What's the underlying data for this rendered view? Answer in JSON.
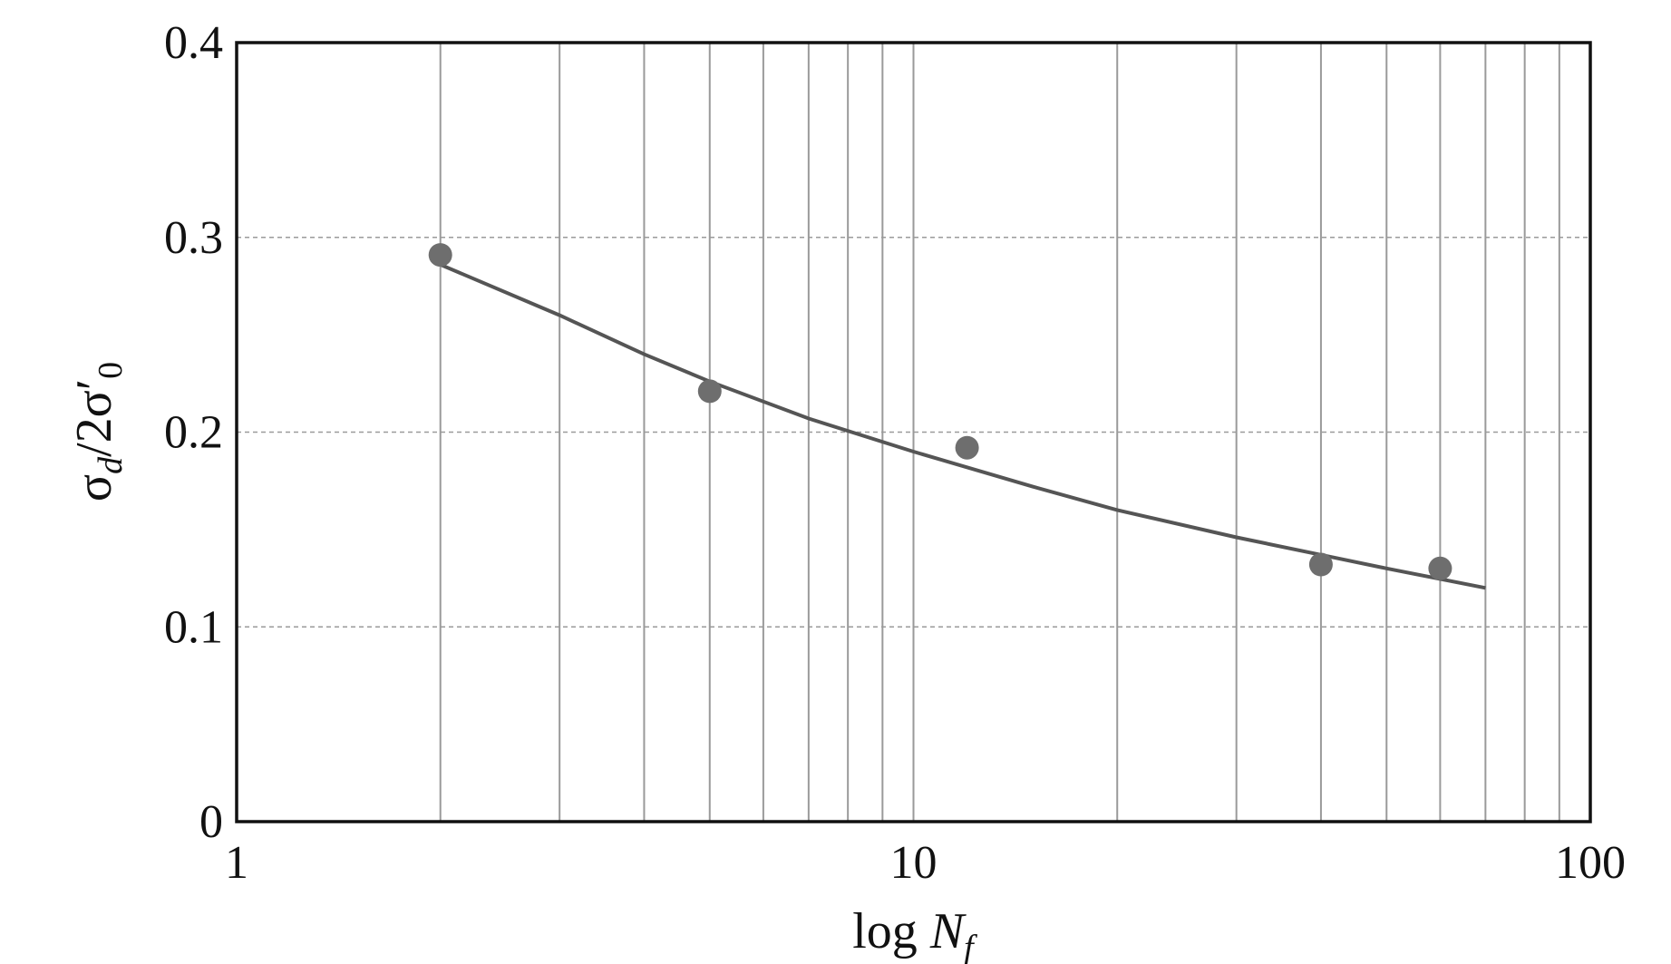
{
  "chart_data": {
    "type": "scatter",
    "title": "",
    "xlabel": "log N_f",
    "xlabel_parts": {
      "prefix": "log ",
      "main": "N",
      "sub": "f"
    },
    "ylabel": "σ_d/2σ'_0",
    "ylabel_parts": {
      "s1": "σ",
      "sub1": "d",
      "mid": "/2σ",
      "prime": "′",
      "sub2": "0"
    },
    "x_scale": "log",
    "xlim": [
      1,
      100
    ],
    "ylim": [
      0,
      0.4
    ],
    "x_ticks": [
      1,
      10,
      100
    ],
    "x_tick_labels": [
      "1",
      "10",
      "100"
    ],
    "y_ticks": [
      0,
      0.1,
      0.2,
      0.3,
      0.4
    ],
    "y_tick_labels": [
      "0",
      "0.1",
      "0.2",
      "0.3",
      "0.4"
    ],
    "grid": {
      "x_minor": true,
      "y_major": true
    },
    "legend": "none",
    "series": [
      {
        "kind": "points",
        "x": [
          2,
          5,
          12,
          40,
          60
        ],
        "y": [
          0.291,
          0.221,
          0.192,
          0.132,
          0.13
        ]
      },
      {
        "kind": "fit-line",
        "x": [
          2,
          3,
          4,
          5,
          7,
          10,
          15,
          20,
          30,
          40,
          50,
          70
        ],
        "y": [
          0.286,
          0.26,
          0.24,
          0.226,
          0.207,
          0.19,
          0.172,
          0.16,
          0.146,
          0.137,
          0.13,
          0.12
        ]
      }
    ]
  }
}
